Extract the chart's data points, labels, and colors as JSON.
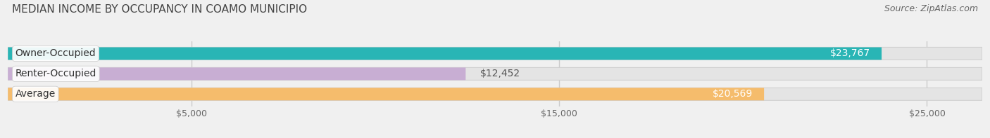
{
  "title": "MEDIAN INCOME BY OCCUPANCY IN COAMO MUNICIPIO",
  "source": "Source: ZipAtlas.com",
  "categories": [
    "Owner-Occupied",
    "Renter-Occupied",
    "Average"
  ],
  "values": [
    23767,
    12452,
    20569
  ],
  "bar_colors": [
    "#29b5b5",
    "#c8aed3",
    "#f5bc6c"
  ],
  "label_colors": [
    "#ffffff",
    "#ffffff",
    "#ffffff"
  ],
  "value_labels": [
    "$23,767",
    "$12,452",
    "$20,569"
  ],
  "value_inside": [
    true,
    false,
    true
  ],
  "xlim_max": 26500,
  "xticks": [
    5000,
    15000,
    25000
  ],
  "xtick_labels": [
    "$5,000",
    "$15,000",
    "$25,000"
  ],
  "title_fontsize": 11,
  "source_fontsize": 9,
  "label_fontsize": 10,
  "value_fontsize": 10,
  "tick_fontsize": 9,
  "background_color": "#f0f0f0",
  "bar_bg_color": "#e4e4e4",
  "bar_bg_border": "#d0d0d0",
  "title_color": "#444444",
  "source_color": "#666666",
  "tick_color": "#666666",
  "grid_color": "#cccccc",
  "bar_height": 0.62,
  "rounding_size": 0.31
}
